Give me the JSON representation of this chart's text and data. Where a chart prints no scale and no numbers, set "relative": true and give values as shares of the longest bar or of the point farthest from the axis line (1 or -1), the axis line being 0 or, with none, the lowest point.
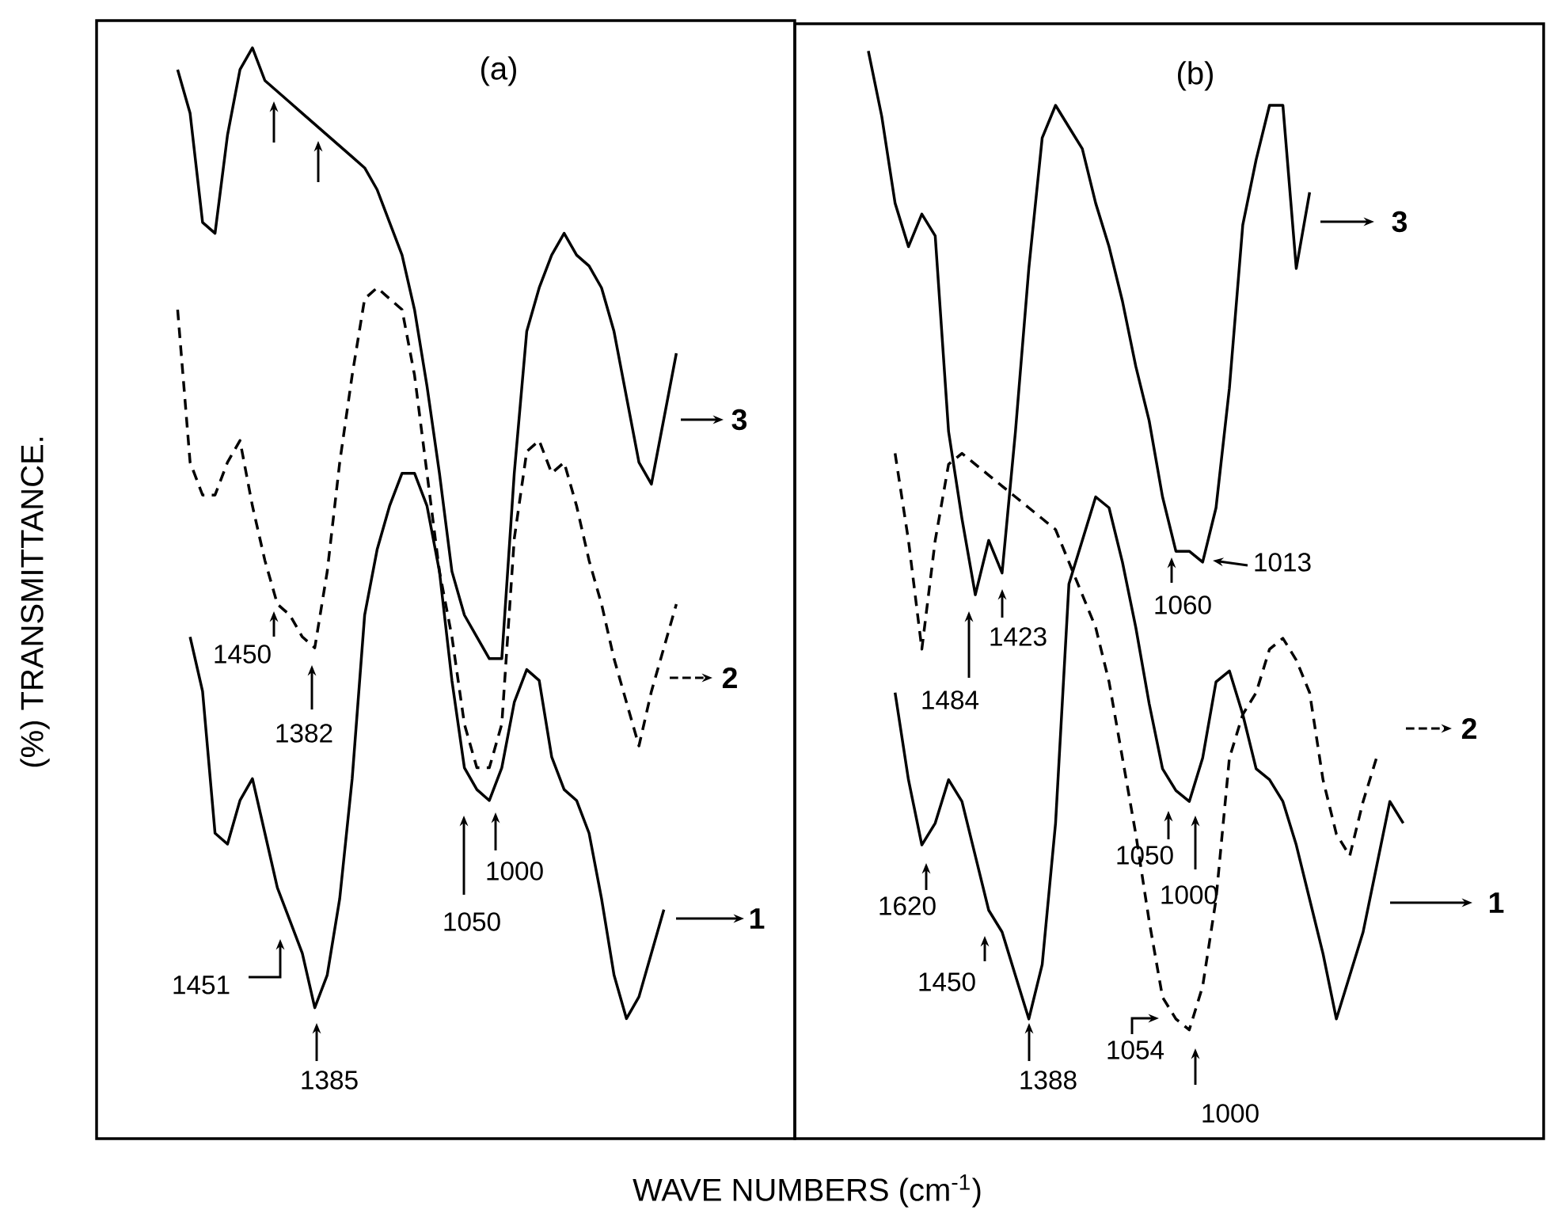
{
  "chart_data": [
    {
      "type": "line",
      "title": "(a)",
      "legend": "right",
      "xlabel": "WAVE NUMBERS (cm$^{-1}$)",
      "ylabel": "(%) TRANSMITTANCE.",
      "relative": true,
      "categories": [
        null,
        null,
        null,
        null,
        null,
        null,
        null,
        null,
        null,
        null,
        null,
        null,
        null,
        null,
        null,
        null,
        null,
        null,
        null,
        null,
        null,
        null,
        null,
        null,
        null,
        null,
        null,
        null,
        null,
        null,
        null,
        null,
        null,
        null,
        null,
        null,
        null,
        null,
        null,
        null,
        null,
        null,
        null,
        null,
        null,
        null,
        null,
        null,
        null,
        null,
        null,
        null,
        null,
        null,
        null,
        null
      ],
      "series": [
        {
          "name": "1",
          "color": "#000000",
          "line_style": "solid",
          "values": [
            null,
            null,
            null,
            null,
            null,
            null,
            null,
            0.46,
            0.41,
            0.28,
            0.27,
            0.31,
            0.33,
            0.28,
            0.23,
            0.2,
            0.17,
            0.12,
            0.15,
            0.22,
            0.33,
            0.48,
            0.54,
            0.58,
            0.61,
            0.61,
            0.58,
            0.52,
            0.42,
            0.34,
            0.32,
            0.31,
            0.34,
            0.4,
            0.43,
            0.42,
            0.35,
            0.32,
            0.31,
            0.28,
            0.22,
            0.15,
            0.11,
            0.13,
            0.17,
            0.21,
            null,
            null,
            null,
            null,
            null,
            null,
            null,
            null,
            null,
            null
          ]
        },
        {
          "name": "2",
          "color": "#000000",
          "line_style": "dashed",
          "values": [
            null,
            null,
            null,
            null,
            null,
            null,
            0.76,
            0.62,
            0.59,
            0.59,
            0.62,
            0.64,
            0.58,
            0.53,
            0.49,
            0.48,
            0.46,
            0.45,
            0.52,
            0.62,
            0.7,
            0.77,
            0.78,
            0.77,
            0.76,
            0.7,
            0.61,
            0.52,
            0.46,
            0.38,
            0.34,
            0.34,
            0.38,
            0.55,
            0.63,
            0.64,
            0.61,
            0.62,
            0.58,
            0.53,
            0.49,
            0.44,
            0.4,
            0.36,
            0.41,
            0.45,
            0.49,
            null,
            null,
            null,
            null,
            null,
            null,
            null,
            null,
            null
          ]
        },
        {
          "name": "3",
          "color": "#000000",
          "line_style": "solid",
          "values": [
            null,
            null,
            null,
            null,
            null,
            null,
            0.98,
            0.94,
            0.84,
            0.83,
            0.92,
            0.98,
            1.0,
            0.97,
            0.96,
            0.95,
            0.94,
            0.93,
            0.92,
            0.91,
            0.9,
            0.89,
            0.87,
            0.84,
            0.81,
            0.76,
            0.69,
            0.61,
            0.52,
            0.48,
            0.46,
            0.44,
            0.44,
            0.61,
            0.74,
            0.78,
            0.81,
            0.83,
            0.81,
            0.8,
            0.78,
            0.74,
            0.68,
            0.62,
            0.6,
            0.66,
            0.72,
            null,
            null,
            null,
            null,
            null,
            null,
            null,
            null,
            null
          ]
        }
      ],
      "annotations": [
        "1450",
        "1382",
        "1050",
        "1000",
        "1451",
        "1385"
      ]
    },
    {
      "type": "line",
      "title": "(b)",
      "legend": "right",
      "relative": true,
      "categories": [
        null,
        null,
        null,
        null,
        null,
        null,
        null,
        null,
        null,
        null,
        null,
        null,
        null,
        null,
        null,
        null,
        null,
        null,
        null,
        null,
        null,
        null,
        null,
        null,
        null,
        null,
        null,
        null,
        null,
        null,
        null,
        null,
        null,
        null,
        null,
        null,
        null,
        null,
        null,
        null,
        null,
        null,
        null,
        null,
        null,
        null,
        null,
        null,
        null,
        null,
        null,
        null,
        null,
        null,
        null,
        null
      ],
      "series": [
        {
          "name": "1",
          "color": "#000000",
          "line_style": "solid",
          "values": [
            null,
            null,
            null,
            null,
            null,
            null,
            null,
            0.41,
            0.33,
            0.27,
            0.29,
            0.33,
            0.31,
            0.26,
            0.21,
            0.19,
            0.15,
            0.11,
            0.16,
            0.29,
            0.51,
            0.55,
            0.59,
            0.58,
            0.53,
            0.47,
            0.4,
            0.34,
            0.32,
            0.31,
            0.35,
            0.42,
            0.43,
            0.39,
            0.34,
            0.33,
            0.31,
            0.27,
            0.22,
            0.17,
            0.11,
            0.15,
            0.19,
            0.25,
            0.31,
            0.29,
            null,
            null,
            null,
            null,
            null,
            null,
            null,
            null,
            null,
            null
          ]
        },
        {
          "name": "2",
          "color": "#000000",
          "line_style": "dashed",
          "values": [
            null,
            null,
            null,
            null,
            null,
            null,
            null,
            0.63,
            0.55,
            0.45,
            0.55,
            0.62,
            0.63,
            0.62,
            0.61,
            0.6,
            0.59,
            0.58,
            0.57,
            0.56,
            0.53,
            0.5,
            0.47,
            0.42,
            0.35,
            0.28,
            0.2,
            0.13,
            0.11,
            0.1,
            0.14,
            0.22,
            0.35,
            0.39,
            0.41,
            0.45,
            0.46,
            0.44,
            0.41,
            0.33,
            0.28,
            0.26,
            0.31,
            0.35,
            null,
            null,
            null,
            null,
            null,
            null,
            null,
            null,
            null,
            null,
            null,
            null
          ]
        },
        {
          "name": "3",
          "color": "#000000",
          "line_style": "solid",
          "values": [
            null,
            null,
            null,
            null,
            null,
            1.0,
            0.94,
            0.86,
            0.82,
            0.85,
            0.83,
            0.65,
            0.57,
            0.5,
            0.55,
            0.52,
            0.65,
            0.8,
            0.92,
            0.95,
            0.93,
            0.91,
            0.86,
            0.82,
            0.77,
            0.71,
            0.66,
            0.59,
            0.54,
            0.54,
            0.53,
            0.58,
            0.69,
            0.84,
            0.9,
            0.95,
            0.95,
            0.8,
            0.87,
            null,
            null,
            null,
            null,
            null,
            null,
            null,
            null,
            null,
            null,
            null,
            null,
            null,
            null,
            null,
            null,
            null
          ]
        }
      ],
      "annotations": [
        "1060",
        "1013",
        "1484",
        "1423",
        "1620",
        "1450",
        "1388",
        "1050",
        "1000",
        "1054",
        "1000"
      ]
    }
  ]
}
